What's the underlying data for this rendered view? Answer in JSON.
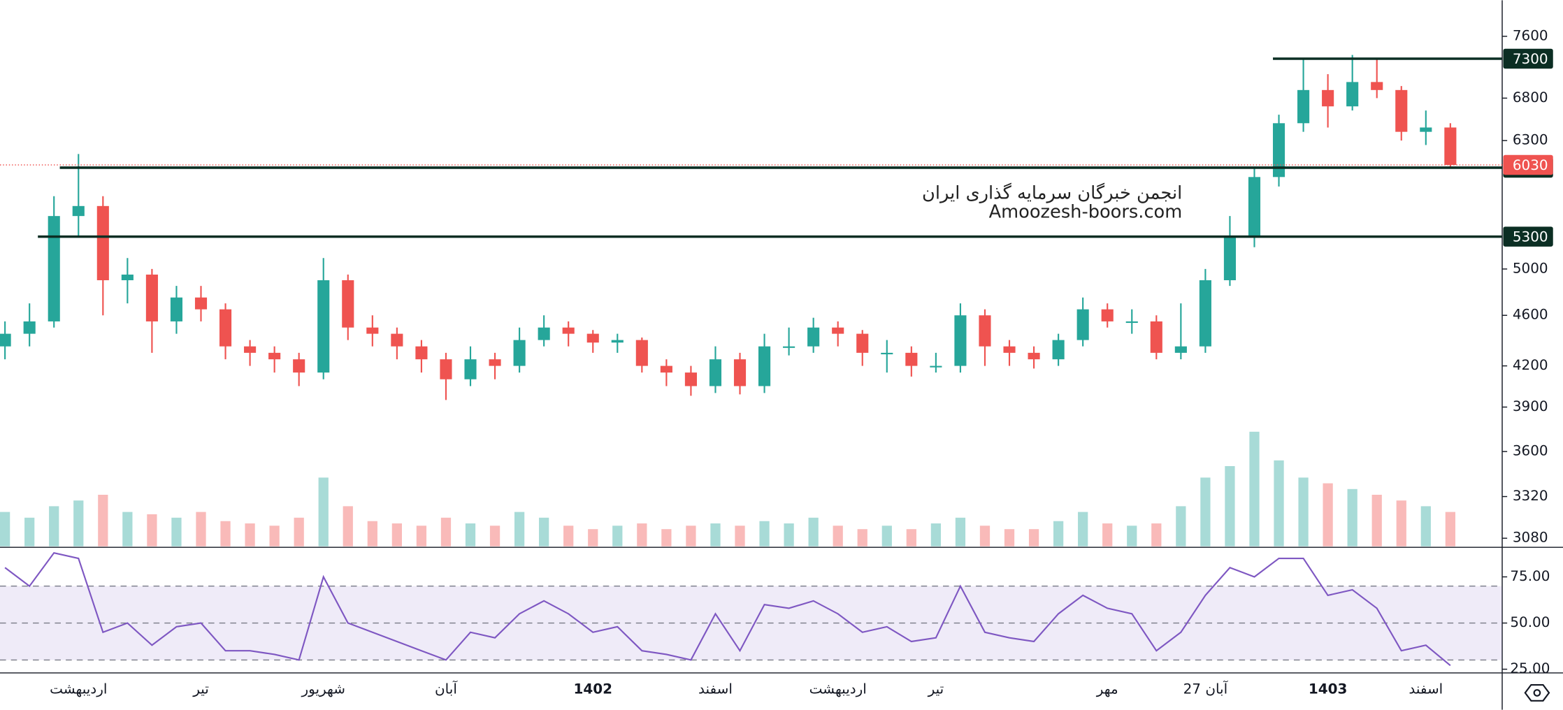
{
  "chart_data": [
    {
      "type": "candlestick",
      "log": true,
      "categories": [
        null,
        null,
        null,
        "اردیبهشت",
        null,
        null,
        null,
        null,
        "تیر",
        null,
        null,
        null,
        null,
        "شهریور",
        null,
        null,
        null,
        null,
        "آبان",
        null,
        null,
        null,
        null,
        null,
        "1402",
        null,
        null,
        null,
        null,
        "اسفند",
        null,
        null,
        null,
        null,
        "اردیبهشت",
        null,
        null,
        null,
        "تیر",
        null,
        null,
        null,
        null,
        null,
        null,
        "مهر",
        null,
        null,
        null,
        "27 آبان",
        null,
        null,
        null,
        null,
        "1403",
        null,
        null,
        null,
        "اسفند",
        null
      ],
      "open": [
        4350,
        4450,
        4550,
        5500,
        5600,
        4900,
        4950,
        4550,
        4750,
        4650,
        4350,
        4300,
        4250,
        4150,
        4900,
        4500,
        4450,
        4350,
        4250,
        4100,
        4250,
        4200,
        4400,
        4500,
        4450,
        4380,
        4400,
        4200,
        4150,
        4050,
        4250,
        4050,
        4350,
        4350,
        4500,
        4450,
        4300,
        4300,
        4200,
        4200,
        4600,
        4350,
        4300,
        4250,
        4400,
        4650,
        4550,
        4550,
        4300,
        4350,
        4900,
        5300,
        5900,
        6500,
        6900,
        6700,
        7000,
        6900,
        6400,
        6450
      ],
      "high": [
        4550,
        4700,
        5700,
        6150,
        5700,
        5100,
        5000,
        4850,
        4850,
        4700,
        4400,
        4350,
        4300,
        5100,
        4950,
        4600,
        4500,
        4400,
        4300,
        4350,
        4300,
        4500,
        4600,
        4550,
        4480,
        4450,
        4420,
        4250,
        4200,
        4350,
        4300,
        4450,
        4500,
        4580,
        4550,
        4480,
        4400,
        4350,
        4300,
        4700,
        4650,
        4400,
        4350,
        4450,
        4750,
        4700,
        4650,
        4600,
        4700,
        5000,
        5500,
        6000,
        6600,
        7300,
        7100,
        7350,
        7300,
        6950,
        6650,
        6500
      ],
      "low": [
        4250,
        4350,
        4500,
        5300,
        4600,
        4700,
        4300,
        4450,
        4550,
        4250,
        4200,
        4150,
        4050,
        4100,
        4400,
        4350,
        4250,
        4150,
        3950,
        4050,
        4100,
        4150,
        4350,
        4350,
        4300,
        4300,
        4150,
        4050,
        3980,
        4000,
        3990,
        4000,
        4280,
        4300,
        4350,
        4200,
        4150,
        4120,
        4150,
        4150,
        4200,
        4200,
        4180,
        4200,
        4350,
        4500,
        4450,
        4250,
        4250,
        4300,
        4850,
        5200,
        5800,
        6400,
        6450,
        6650,
        6800,
        6300,
        6250,
        6000
      ],
      "close": [
        4450,
        4550,
        5500,
        5600,
        4900,
        4950,
        4550,
        4750,
        4650,
        4350,
        4300,
        4250,
        4150,
        4900,
        4500,
        4450,
        4350,
        4250,
        4100,
        4250,
        4200,
        4400,
        4500,
        4450,
        4380,
        4400,
        4200,
        4150,
        4050,
        4250,
        4050,
        4350,
        4350,
        4500,
        4450,
        4300,
        4300,
        4200,
        4200,
        4600,
        4350,
        4300,
        4250,
        4400,
        4650,
        4550,
        4550,
        4300,
        4350,
        4900,
        5300,
        5900,
        6500,
        6900,
        6700,
        7000,
        6900,
        6400,
        6450,
        6030
      ],
      "volume": [
        30,
        25,
        35,
        40,
        45,
        30,
        28,
        25,
        30,
        22,
        20,
        18,
        25,
        60,
        35,
        22,
        20,
        18,
        25,
        20,
        18,
        30,
        25,
        18,
        15,
        18,
        20,
        15,
        18,
        20,
        18,
        22,
        20,
        25,
        18,
        15,
        18,
        15,
        20,
        25,
        18,
        15,
        15,
        22,
        30,
        20,
        18,
        20,
        35,
        60,
        70,
        100,
        75,
        60,
        55,
        50,
        45,
        40,
        35,
        30
      ],
      "up_color": "#26a69a",
      "down_color": "#ef5350",
      "ylim": [
        3030,
        8110
      ],
      "yticks": [
        7600,
        6800,
        6300,
        5000,
        4600,
        4200,
        3900,
        3600,
        3320,
        3080
      ],
      "levels": [
        7300,
        6000,
        5300
      ],
      "level_color": "#0b2e23",
      "last_price": 6030,
      "watermark": [
        "انجمن خبرگان سرمایه گذاری ایران",
        "Amoozesh-boors.com"
      ]
    },
    {
      "type": "line",
      "values": [
        80,
        70,
        88,
        85,
        45,
        50,
        38,
        48,
        50,
        35,
        35,
        33,
        30,
        75,
        50,
        45,
        40,
        35,
        30,
        45,
        42,
        55,
        62,
        55,
        45,
        48,
        35,
        33,
        30,
        55,
        35,
        60,
        58,
        62,
        55,
        45,
        48,
        40,
        42,
        70,
        45,
        42,
        40,
        55,
        65,
        58,
        55,
        35,
        45,
        65,
        80,
        75,
        85,
        85,
        65,
        68,
        58,
        35,
        38,
        27
      ],
      "color": "#7e57c2",
      "ylim": [
        23,
        91
      ],
      "yticks": [
        {
          "value": 75,
          "label": "75.00"
        },
        {
          "value": 50,
          "label": "50.00"
        },
        {
          "value": 25,
          "label": "25.00"
        }
      ],
      "bands": [
        70,
        50,
        30
      ]
    }
  ]
}
